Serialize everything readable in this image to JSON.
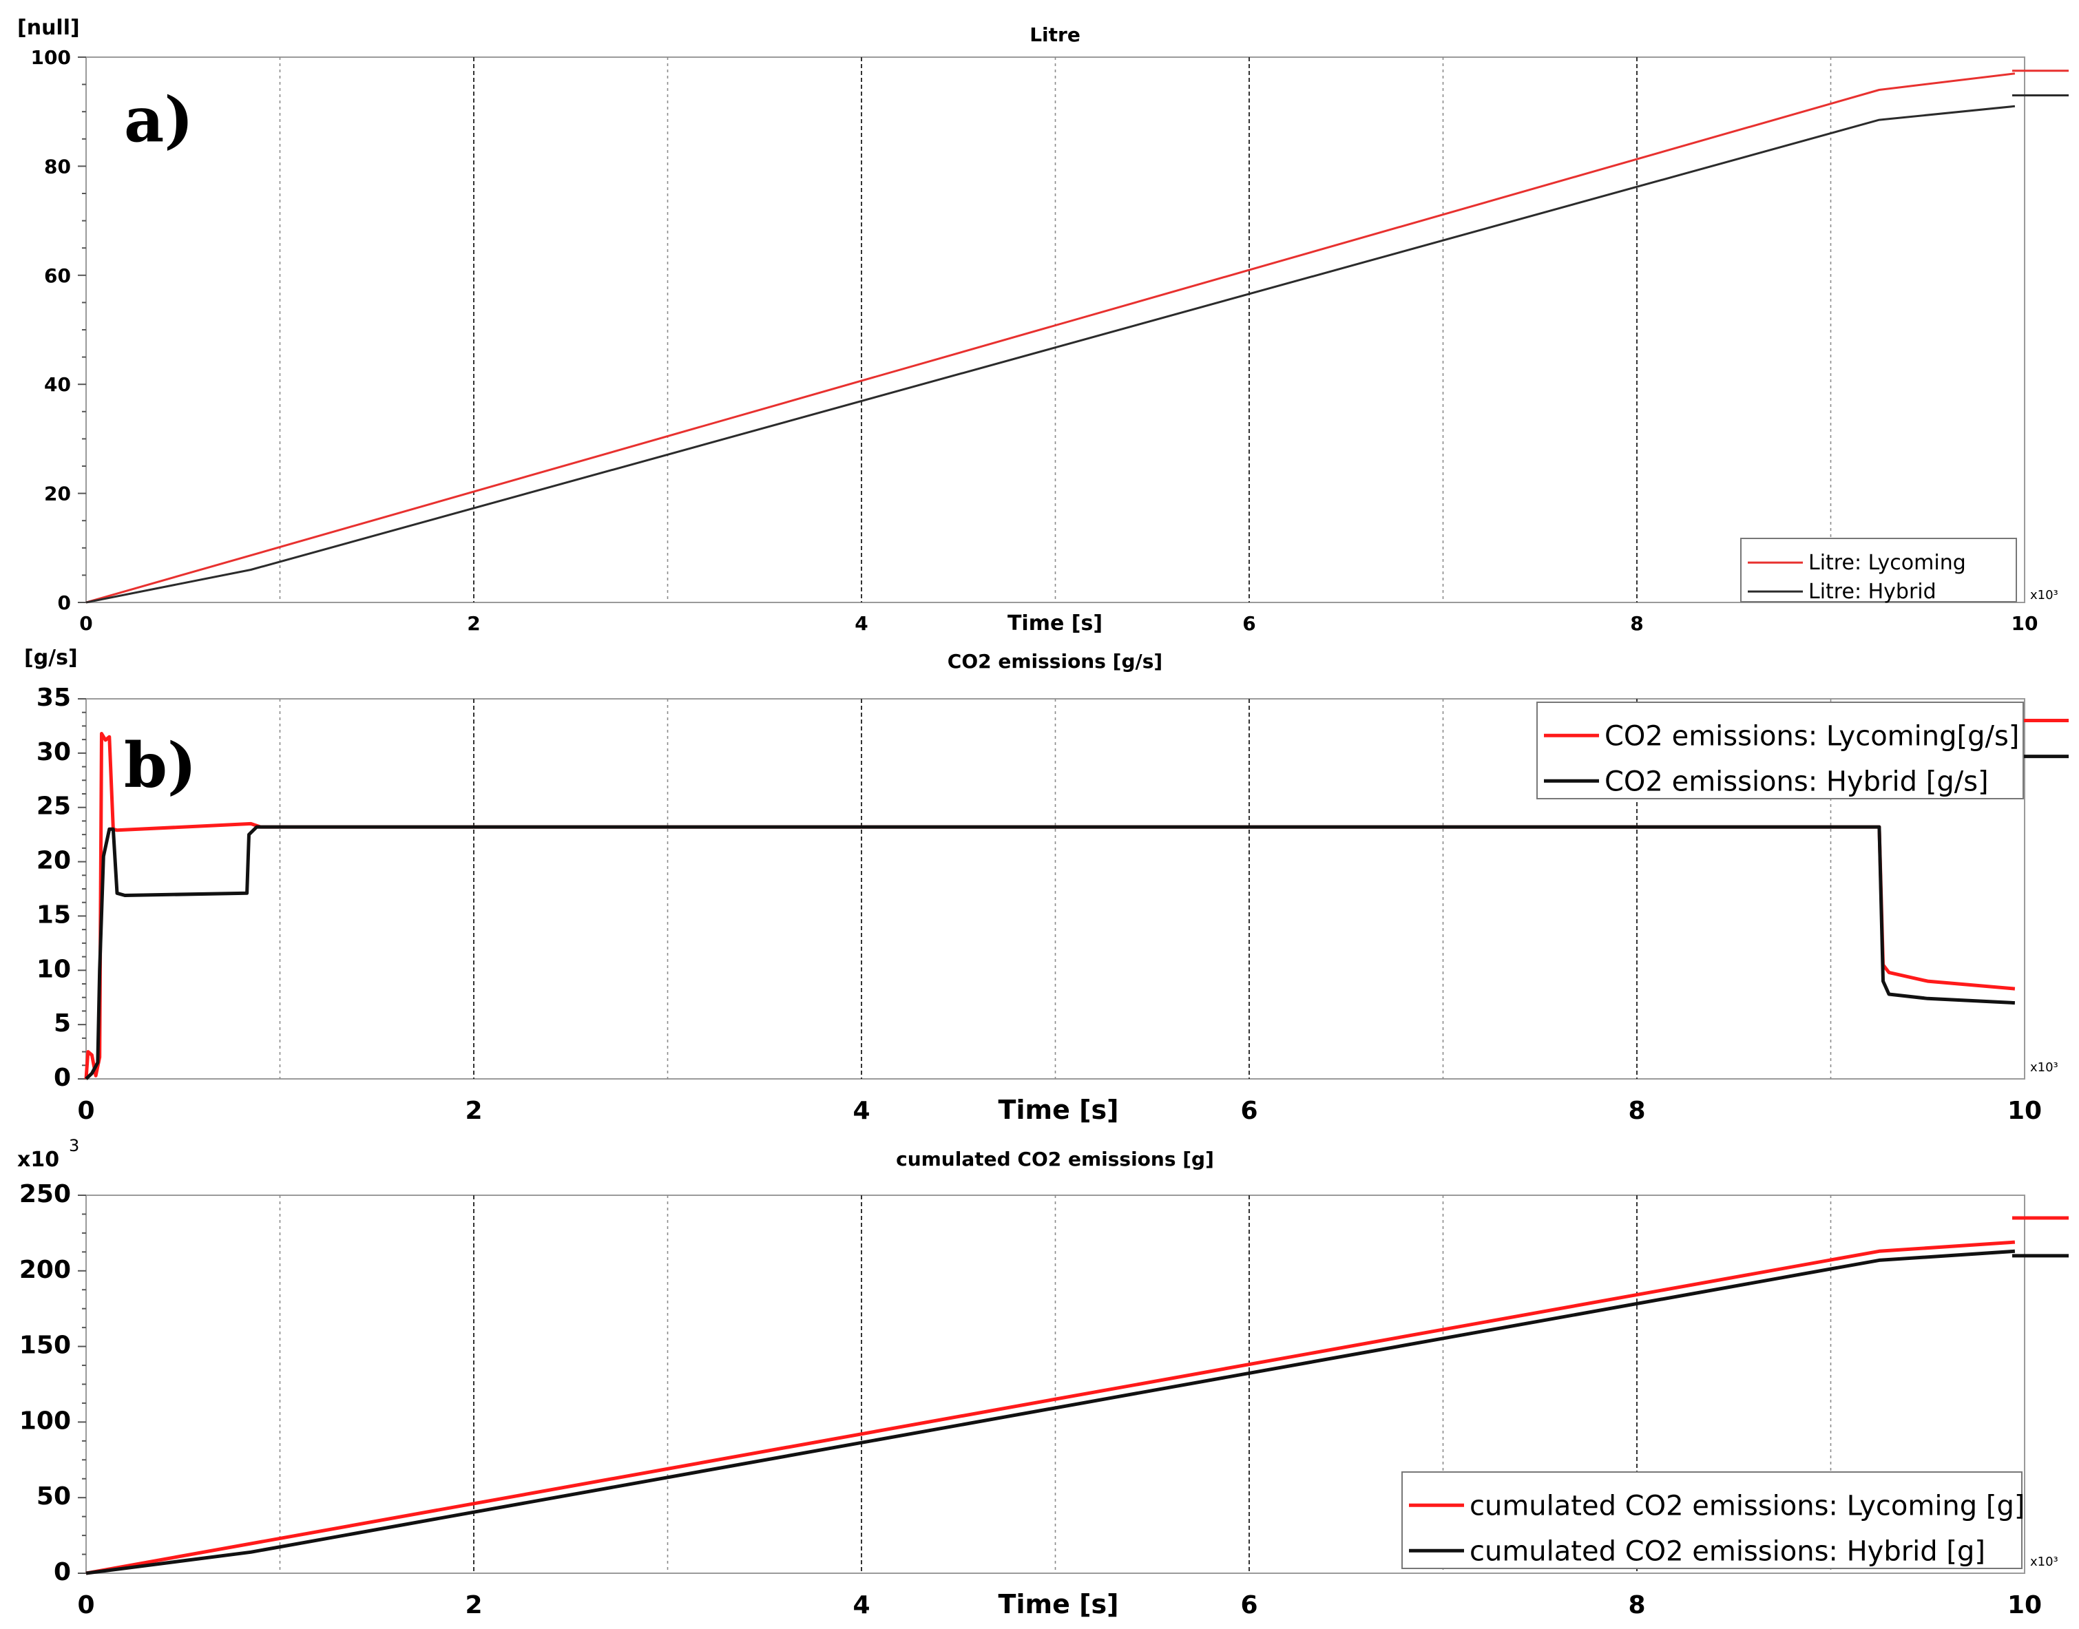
{
  "chart_data": [
    {
      "panel": "a)",
      "type": "line",
      "title": "Litre",
      "ylabel": "[null]",
      "xlabel": "Time [s]",
      "x_multiplier": "x10³",
      "xlim": [
        0,
        10
      ],
      "ylim": [
        0,
        100
      ],
      "xticks": [
        0,
        2,
        4,
        6,
        8,
        10
      ],
      "yticks": [
        0,
        20,
        40,
        60,
        80,
        100
      ],
      "grid": true,
      "legend_position": "bottom-right",
      "series": [
        {
          "name": "Litre: Lycoming",
          "color": "#e8312f",
          "x": [
            0,
            9.25,
            9.95
          ],
          "y": [
            0,
            94,
            97
          ]
        },
        {
          "name": "Litre: Hybrid",
          "color": "#2b2b2b",
          "x": [
            0,
            0.85,
            9.25,
            9.95
          ],
          "y": [
            0,
            6,
            88.5,
            91
          ]
        }
      ],
      "end_markers": [
        97.5,
        93
      ]
    },
    {
      "panel": "b)",
      "type": "line",
      "title": "CO2 emissions [g/s]",
      "ylabel": "[g/s]",
      "xlabel": "Time [s]",
      "x_multiplier": "x10³",
      "xlim": [
        0,
        10
      ],
      "ylim": [
        0,
        35
      ],
      "xticks": [
        0,
        2,
        4,
        6,
        8,
        10
      ],
      "yticks": [
        0,
        5,
        10,
        15,
        20,
        25,
        30,
        35
      ],
      "grid": true,
      "legend_position": "top-right",
      "series": [
        {
          "name": "CO2 emissions: Lycoming[g/s]",
          "color": "#ff1a1a",
          "x": [
            0,
            0.01,
            0.03,
            0.05,
            0.07,
            0.08,
            0.1,
            0.12,
            0.14,
            0.16,
            0.85,
            0.9,
            1.0,
            9.25,
            9.27,
            9.3,
            9.5,
            9.95
          ],
          "y": [
            0,
            2.5,
            2.2,
            0.3,
            2.0,
            31.8,
            31.2,
            31.5,
            23.0,
            22.9,
            23.5,
            23.2,
            23.2,
            23.2,
            10.5,
            9.8,
            9.0,
            8.3
          ]
        },
        {
          "name": "CO2 emissions: Hybrid [g/s]",
          "color": "#111111",
          "x": [
            0,
            0.03,
            0.06,
            0.07,
            0.09,
            0.12,
            0.14,
            0.16,
            0.2,
            0.83,
            0.84,
            0.88,
            1.0,
            9.25,
            9.27,
            9.3,
            9.5,
            9.95
          ],
          "y": [
            0,
            0.5,
            1.5,
            10.0,
            20.5,
            23.0,
            23.0,
            17.1,
            16.9,
            17.1,
            22.5,
            23.2,
            23.2,
            23.2,
            9.0,
            7.8,
            7.4,
            7.0
          ]
        }
      ],
      "end_markers": [
        33,
        29.7
      ]
    },
    {
      "panel": "",
      "type": "line",
      "title": "cumulated CO2 emissions [g]",
      "ylabel": "x10",
      "ylabel_exponent": "3",
      "xlabel": "Time [s]",
      "x_multiplier": "x10³",
      "xlim": [
        0,
        10
      ],
      "ylim": [
        0,
        250
      ],
      "xticks": [
        0,
        2,
        4,
        6,
        8,
        10
      ],
      "yticks": [
        0,
        50,
        100,
        150,
        200,
        250
      ],
      "grid": true,
      "legend_position": "bottom-right",
      "series": [
        {
          "name": "cumulated CO2 emissions: Lycoming [g]",
          "color": "#ff1a1a",
          "x": [
            0,
            9.25,
            9.95
          ],
          "y": [
            0,
            213,
            219
          ]
        },
        {
          "name": "cumulated CO2 emissions: Hybrid [g]",
          "color": "#111111",
          "x": [
            0,
            0.85,
            9.25,
            9.95
          ],
          "y": [
            0,
            14,
            207,
            213
          ]
        }
      ],
      "end_markers": [
        235,
        210
      ]
    }
  ]
}
